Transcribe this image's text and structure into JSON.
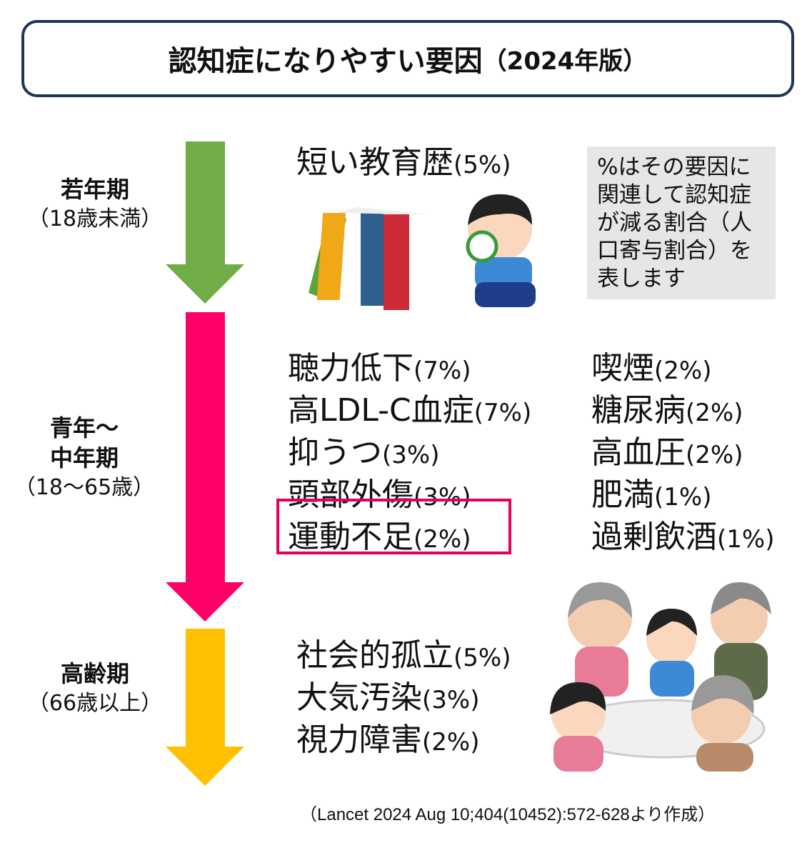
{
  "title": {
    "main": "認知症になりやすい要因",
    "sub": "（2024年版）"
  },
  "colors": {
    "youth": "#70ad47",
    "midlife": "#ff0066",
    "late": "#ffc000",
    "border": "#1f3556",
    "highlight": "#e6005c"
  },
  "stages": [
    {
      "name": "若年期",
      "range": "（18歳未満）"
    },
    {
      "name": "青年～\n中年期",
      "range": "（18～65歳）"
    },
    {
      "name": "高齢期",
      "range": "（66歳以上）"
    }
  ],
  "youth_items": [
    {
      "name": "短い教育歴",
      "pct": "(5%)"
    }
  ],
  "midlife_left": [
    {
      "name": "聴力低下",
      "pct": "(7%)"
    },
    {
      "name": "高LDL-C血症",
      "pct": "(7%)"
    },
    {
      "name": "抑うつ",
      "pct": "(3%)"
    },
    {
      "name": "頭部外傷",
      "pct": "(3%)"
    },
    {
      "name": "運動不足",
      "pct": "(2%)"
    }
  ],
  "midlife_right": [
    {
      "name": "喫煙",
      "pct": "(2%)"
    },
    {
      "name": "糖尿病",
      "pct": "(2%)"
    },
    {
      "name": "高血圧",
      "pct": "(2%)"
    },
    {
      "name": "肥満",
      "pct": "(1%)"
    },
    {
      "name": "過剰飲酒",
      "pct": "(1%)"
    }
  ],
  "late_items": [
    {
      "name": "社会的孤立",
      "pct": "(5%)"
    },
    {
      "name": "大気汚染",
      "pct": "(3%)"
    },
    {
      "name": "視力障害",
      "pct": "(2%)"
    }
  ],
  "note": "%はその要因に関連して認知症が減る割合（人口寄与割合）を表します",
  "citation": "（Lancet 2024 Aug 10;404(10452):572-628より作成）",
  "highlighted_item": "運動不足"
}
